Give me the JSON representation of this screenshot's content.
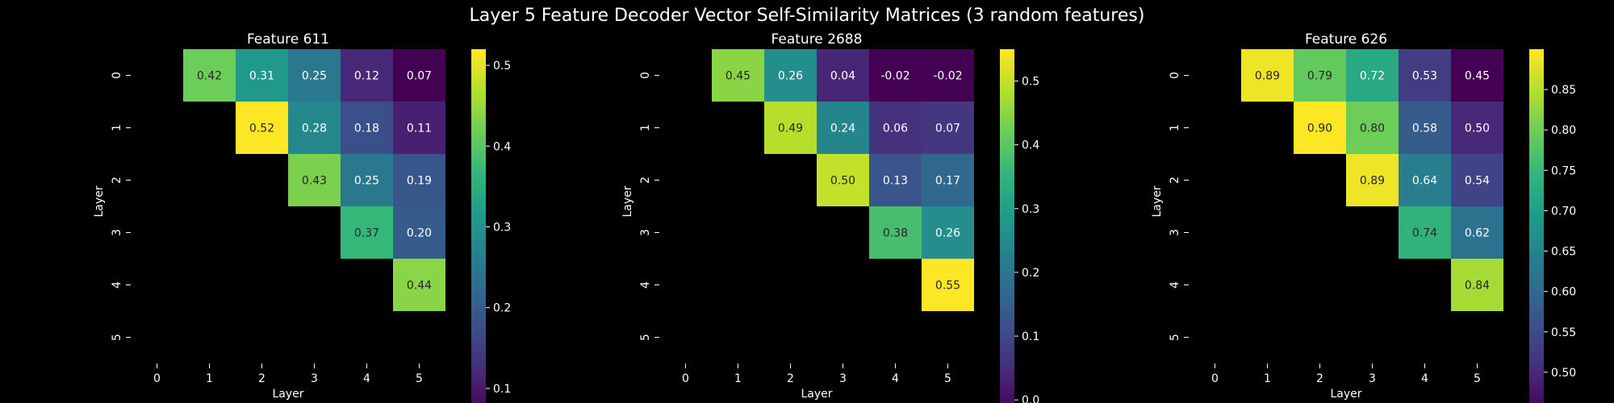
{
  "chart_data": {
    "title": "Layer 5 Feature Decoder Vector Self-Similarity Matrices (3 random features)",
    "colormap": "viridis",
    "panels": [
      {
        "type": "heatmap",
        "title": "Feature 611",
        "xlabel": "Layer",
        "ylabel": "Layer",
        "x_ticks": [
          "0",
          "1",
          "2",
          "3",
          "4",
          "5"
        ],
        "y_ticks": [
          "0",
          "1",
          "2",
          "3",
          "4",
          "5"
        ],
        "mask": "lower-triangle-and-diagonal",
        "values": [
          [
            null,
            0.42,
            0.31,
            0.25,
            0.12,
            0.07
          ],
          [
            null,
            null,
            0.52,
            0.28,
            0.18,
            0.11
          ],
          [
            null,
            null,
            null,
            0.43,
            0.25,
            0.19
          ],
          [
            null,
            null,
            null,
            null,
            0.37,
            0.2
          ],
          [
            null,
            null,
            null,
            null,
            null,
            0.44
          ],
          [
            null,
            null,
            null,
            null,
            null,
            null
          ]
        ],
        "vmin": 0.07,
        "vmax": 0.52,
        "colorbar_ticks": [
          "0.1",
          "0.2",
          "0.3",
          "0.4",
          "0.5"
        ]
      },
      {
        "type": "heatmap",
        "title": "Feature 2688",
        "xlabel": "Layer",
        "ylabel": "Layer",
        "x_ticks": [
          "0",
          "1",
          "2",
          "3",
          "4",
          "5"
        ],
        "y_ticks": [
          "0",
          "1",
          "2",
          "3",
          "4",
          "5"
        ],
        "mask": "lower-triangle-and-diagonal",
        "values": [
          [
            null,
            0.45,
            0.26,
            0.04,
            -0.02,
            -0.02
          ],
          [
            null,
            null,
            0.49,
            0.24,
            0.06,
            0.07
          ],
          [
            null,
            null,
            null,
            0.5,
            0.13,
            0.17
          ],
          [
            null,
            null,
            null,
            null,
            0.38,
            0.26
          ],
          [
            null,
            null,
            null,
            null,
            null,
            0.55
          ],
          [
            null,
            null,
            null,
            null,
            null,
            null
          ]
        ],
        "vmin": -0.02,
        "vmax": 0.55,
        "colorbar_ticks": [
          "0.0",
          "0.1",
          "0.2",
          "0.3",
          "0.4",
          "0.5"
        ]
      },
      {
        "type": "heatmap",
        "title": "Feature 626",
        "xlabel": "Layer",
        "ylabel": "Layer",
        "x_ticks": [
          "0",
          "1",
          "2",
          "3",
          "4",
          "5"
        ],
        "y_ticks": [
          "0",
          "1",
          "2",
          "3",
          "4",
          "5"
        ],
        "mask": "lower-triangle-and-diagonal",
        "values": [
          [
            null,
            0.89,
            0.79,
            0.72,
            0.53,
            0.45
          ],
          [
            null,
            null,
            0.9,
            0.8,
            0.58,
            0.5
          ],
          [
            null,
            null,
            null,
            0.89,
            0.64,
            0.54
          ],
          [
            null,
            null,
            null,
            null,
            0.74,
            0.62
          ],
          [
            null,
            null,
            null,
            null,
            null,
            0.84
          ],
          [
            null,
            null,
            null,
            null,
            null,
            null
          ]
        ],
        "vmin": 0.45,
        "vmax": 0.9,
        "colorbar_ticks": [
          "0.50",
          "0.55",
          "0.60",
          "0.65",
          "0.70",
          "0.75",
          "0.80",
          "0.85"
        ]
      }
    ]
  }
}
